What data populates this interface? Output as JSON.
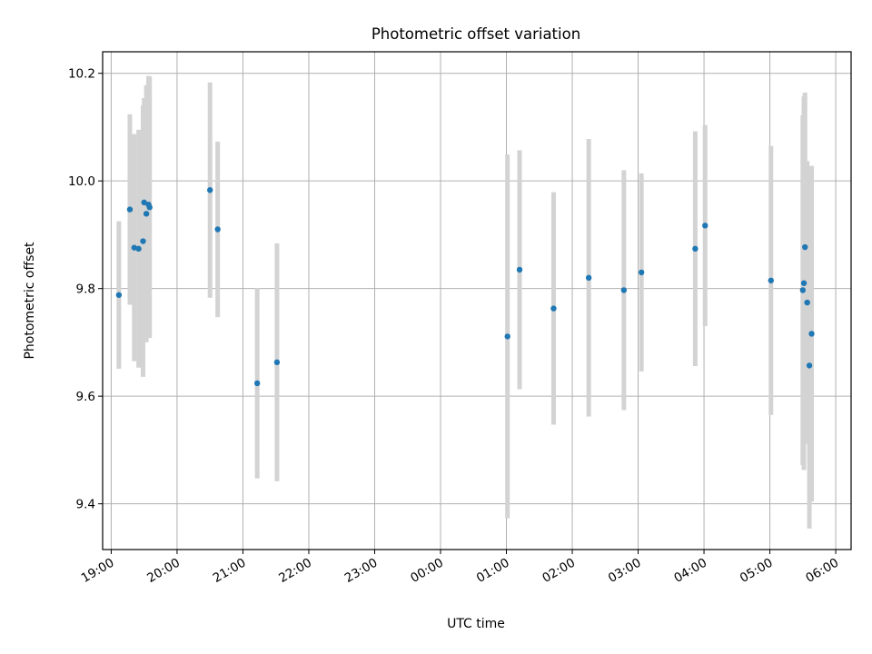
{
  "chart_data": {
    "type": "scatter",
    "title": "Photometric offset variation",
    "xlabel": "UTC time",
    "ylabel": "Photometric offset",
    "x_axis": {
      "kind": "time",
      "start": "2000-01-01 19:00",
      "end": "2000-01-02 06:00",
      "ticks": [
        "19:00",
        "20:00",
        "21:00",
        "22:00",
        "23:00",
        "00:00",
        "01:00",
        "02:00",
        "03:00",
        "04:00",
        "05:00",
        "06:00"
      ]
    },
    "y_axis": {
      "range": [
        9.315,
        10.24
      ],
      "ticks": [
        9.4,
        9.6,
        9.8,
        10.0,
        10.2
      ],
      "tick_labels": [
        "9.4",
        "9.6",
        "9.8",
        "10.0",
        "10.2"
      ]
    },
    "grid": true,
    "point_color": "#1f77b4",
    "errorbar_color": "#d3d3d3",
    "points": [
      {
        "t": "19:07",
        "y": 9.788,
        "err": 0.137
      },
      {
        "t": "19:17",
        "y": 9.947,
        "err": 0.177
      },
      {
        "t": "19:21",
        "y": 9.876,
        "err": 0.211
      },
      {
        "t": "19:25",
        "y": 9.874,
        "err": 0.221
      },
      {
        "t": "19:29",
        "y": 9.888,
        "err": 0.252
      },
      {
        "t": "19:30",
        "y": 9.96,
        "err": 0.194
      },
      {
        "t": "19:32",
        "y": 9.939,
        "err": 0.239
      },
      {
        "t": "19:34",
        "y": 9.956,
        "err": 0.239
      },
      {
        "t": "19:35",
        "y": 9.951,
        "err": 0.243
      },
      {
        "t": "20:30",
        "y": 9.983,
        "err": 0.2
      },
      {
        "t": "20:37",
        "y": 9.91,
        "err": 0.163
      },
      {
        "t": "21:13",
        "y": 9.624,
        "err": 0.177
      },
      {
        "t": "21:31",
        "y": 9.663,
        "err": 0.221
      },
      {
        "t": "01:01",
        "y": 9.711,
        "err": 0.338
      },
      {
        "t": "01:12",
        "y": 9.835,
        "err": 0.222
      },
      {
        "t": "01:43",
        "y": 9.763,
        "err": 0.216
      },
      {
        "t": "02:15",
        "y": 9.82,
        "err": 0.258
      },
      {
        "t": "02:47",
        "y": 9.797,
        "err": 0.223
      },
      {
        "t": "03:03",
        "y": 9.83,
        "err": 0.184
      },
      {
        "t": "03:52",
        "y": 9.874,
        "err": 0.218
      },
      {
        "t": "04:01",
        "y": 9.917,
        "err": 0.187
      },
      {
        "t": "05:01",
        "y": 9.815,
        "err": 0.25
      },
      {
        "t": "05:30",
        "y": 9.797,
        "err": 0.325
      },
      {
        "t": "05:31",
        "y": 9.81,
        "err": 0.347
      },
      {
        "t": "05:32",
        "y": 9.877,
        "err": 0.287
      },
      {
        "t": "05:34",
        "y": 9.774,
        "err": 0.263
      },
      {
        "t": "05:36",
        "y": 9.657,
        "err": 0.303
      },
      {
        "t": "05:38",
        "y": 9.716,
        "err": 0.312
      }
    ]
  }
}
